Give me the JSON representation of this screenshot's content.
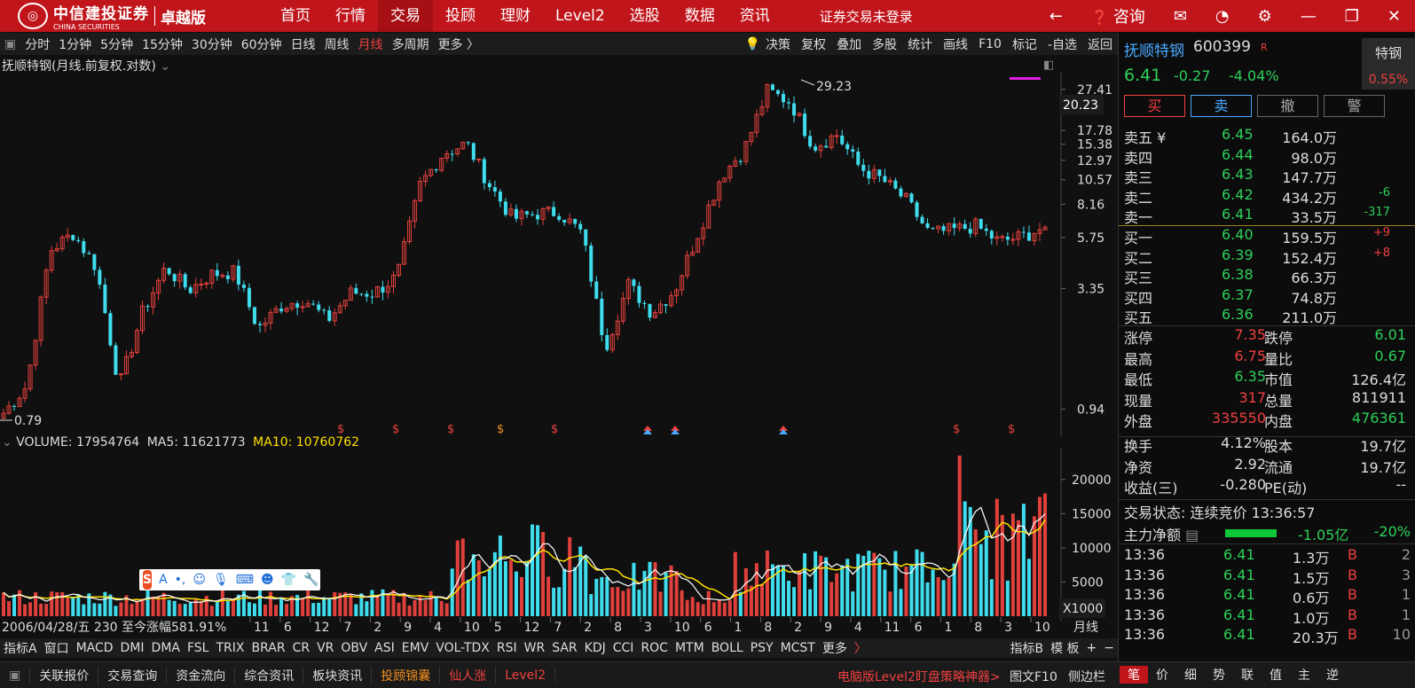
{
  "brand": {
    "logo_cn": "中信建投证券",
    "logo_en": "CHINA SECURITIES",
    "edition": "卓越版"
  },
  "topnav": [
    "首页",
    "行情",
    "交易",
    "投顾",
    "理财",
    "Level2",
    "选股",
    "数据",
    "资讯"
  ],
  "topnav_active": 2,
  "login_status": "证券交易未登录",
  "consult_label": "咨询",
  "periods": [
    "分时",
    "1分钟",
    "5分钟",
    "15分钟",
    "30分钟",
    "60分钟",
    "日线",
    "周线",
    "月线",
    "多周期",
    "更多 〉"
  ],
  "period_active": 8,
  "chart_tools": [
    "决策",
    "复权",
    "叠加",
    "多股",
    "统计",
    "画线",
    "F10",
    "标记",
    "-自选",
    "返回"
  ],
  "chart_title": "抚顺特钢(月线.前复权.对数)",
  "price_axis_labels": [
    "27.41",
    "17.78",
    "15.38",
    "12.97",
    "10.57",
    "8.16",
    "5.75",
    "3.35",
    "0.94"
  ],
  "price_axis_highlight": "20.23",
  "high_marker": "29.23",
  "low_marker": "0.79",
  "volume_header": {
    "volume": "VOLUME: 17954764",
    "ma5": "MA5: 11621773",
    "ma10": "MA10: 10760762"
  },
  "volume_axis_labels": [
    "20000",
    "15000",
    "10000",
    "5000"
  ],
  "volume_unit": "X1000",
  "x_month_labels": [
    "11",
    "6",
    "12",
    "7",
    "2",
    "9",
    "4",
    "10",
    "5",
    "12",
    "7",
    "2",
    "8",
    "3",
    "10",
    "6",
    "1",
    "8",
    "2",
    "9",
    "4",
    "11",
    "6",
    "1",
    "8",
    "3",
    "10"
  ],
  "cursor_info": "2006/04/28/五 230 至今涨幅581.91%",
  "period_label": "月线",
  "indicators": [
    "指标A",
    "窗口",
    "MACD",
    "DMI",
    "DMA",
    "FSL",
    "TRIX",
    "BRAR",
    "CR",
    "VR",
    "OBV",
    "ASI",
    "EMV",
    "VOL-TDX",
    "RSI",
    "WR",
    "SAR",
    "KDJ",
    "CCI",
    "ROC",
    "MTM",
    "BOLL",
    "PSY",
    "MCST",
    "更多"
  ],
  "indicator_right": [
    "指标B",
    "模 板"
  ],
  "bottom_tabs": [
    "关联报价",
    "交易查询",
    "资金流向",
    "综合资讯",
    "板块资讯",
    "投顾锦囊",
    "仙人涨",
    "Level2"
  ],
  "bottom_promo": "电脑版Level2盯盘策略神器>",
  "bottom_f10": "图文F10",
  "bottom_side": "侧边栏",
  "bottom_right_tabs": [
    "笔",
    "价",
    "细",
    "势",
    "联",
    "值",
    "主",
    "逆"
  ],
  "ime_label": "A",
  "stock": {
    "name": "抚顺特钢",
    "code": "600399",
    "rtag": "R",
    "sector": "特钢",
    "sector_pct": "0.55%",
    "price": "6.41",
    "change": "-0.27",
    "pct": "-4.04%"
  },
  "trade_buttons": [
    "买",
    "卖",
    "撤",
    "警"
  ],
  "sells": [
    {
      "label": "卖五 ¥",
      "price": "6.45",
      "vol": "164.0万",
      "chg": ""
    },
    {
      "label": "卖四",
      "price": "6.44",
      "vol": "98.0万",
      "chg": ""
    },
    {
      "label": "卖三",
      "price": "6.43",
      "vol": "147.7万",
      "chg": ""
    },
    {
      "label": "卖二",
      "price": "6.42",
      "vol": "434.2万",
      "chg": "-6"
    },
    {
      "label": "卖一",
      "price": "6.41",
      "vol": "33.5万",
      "chg": "-317"
    }
  ],
  "buys": [
    {
      "label": "买一",
      "price": "6.40",
      "vol": "159.5万",
      "chg": "+9"
    },
    {
      "label": "买二",
      "price": "6.39",
      "vol": "152.4万",
      "chg": "+8"
    },
    {
      "label": "买三",
      "price": "6.38",
      "vol": "66.3万",
      "chg": ""
    },
    {
      "label": "买四",
      "price": "6.37",
      "vol": "74.8万",
      "chg": ""
    },
    {
      "label": "买五",
      "price": "6.36",
      "vol": "211.0万",
      "chg": ""
    }
  ],
  "stats": [
    {
      "l": "涨停",
      "v": "7.35",
      "c": "red"
    },
    {
      "l": "跌停",
      "v": "6.01",
      "c": "green"
    },
    {
      "l": "最高",
      "v": "6.75",
      "c": "red"
    },
    {
      "l": "量比",
      "v": "0.67",
      "c": "green"
    },
    {
      "l": "最低",
      "v": "6.35",
      "c": "green"
    },
    {
      "l": "市值",
      "v": "126.4亿",
      "c": ""
    },
    {
      "l": "现量",
      "v": "317",
      "c": "red"
    },
    {
      "l": "总量",
      "v": "811911",
      "c": ""
    },
    {
      "l": "外盘",
      "v": "335550",
      "c": "red"
    },
    {
      "l": "内盘",
      "v": "476361",
      "c": "green"
    },
    {
      "l": "换手",
      "v": "4.12%",
      "c": ""
    },
    {
      "l": "股本",
      "v": "19.7亿",
      "c": ""
    },
    {
      "l": "净资",
      "v": "2.92",
      "c": ""
    },
    {
      "l": "流通",
      "v": "19.7亿",
      "c": ""
    },
    {
      "l": "收益(三)",
      "v": "-0.280",
      "c": ""
    },
    {
      "l": "PE(动)",
      "v": "--",
      "c": ""
    }
  ],
  "trade_status": "交易状态: 连续竞价 13:36:57",
  "main_flow": {
    "label": "主力净额",
    "value": "-1.05亿",
    "pct": "-20%"
  },
  "ticks": [
    {
      "t": "13:36",
      "p": "6.41",
      "v": "1.3万",
      "bs": "B",
      "n": "2"
    },
    {
      "t": "13:36",
      "p": "6.41",
      "v": "1.5万",
      "bs": "B",
      "n": "3"
    },
    {
      "t": "13:36",
      "p": "6.41",
      "v": "0.6万",
      "bs": "B",
      "n": "1"
    },
    {
      "t": "13:36",
      "p": "6.41",
      "v": "1.0万",
      "bs": "B",
      "n": "1"
    },
    {
      "t": "13:36",
      "p": "6.41",
      "v": "20.3万",
      "bs": "B",
      "n": "10"
    }
  ],
  "colors": {
    "up": "#e0403c",
    "down": "#3fdcee",
    "brand": "#c0151b",
    "ma5": "#ffffff",
    "ma10": "#ffe000"
  },
  "chart_data": {
    "type": "candlestick",
    "title": "抚顺特钢(月线.前复权.对数)",
    "y_scale": "log",
    "high": 29.23,
    "low": 0.79,
    "y_ticks": [
      0.94,
      3.35,
      5.75,
      8.16,
      10.57,
      12.97,
      15.38,
      17.78,
      27.41
    ],
    "close_path": [
      0.9,
      1.2,
      5.0,
      6.0,
      4.2,
      1.2,
      2.6,
      4.2,
      3.3,
      3.9,
      4.0,
      2.2,
      2.8,
      3.0,
      2.4,
      3.2,
      3.2,
      3.8,
      10.0,
      14.0,
      15.5,
      10.0,
      7.0,
      7.4,
      7.5,
      6.0,
      1.8,
      3.5,
      2.6,
      3.3,
      6.0,
      11.0,
      14.5,
      27.0,
      24.0,
      15.0,
      17.0,
      12.0,
      10.5,
      8.5,
      6.0,
      6.2,
      6.5,
      5.5,
      5.8,
      6.41
    ],
    "volume": {
      "unit": "X1000",
      "ylim": [
        0,
        24000
      ],
      "last": 17954764,
      "ma5": 11621773,
      "ma10": 10760762
    }
  }
}
